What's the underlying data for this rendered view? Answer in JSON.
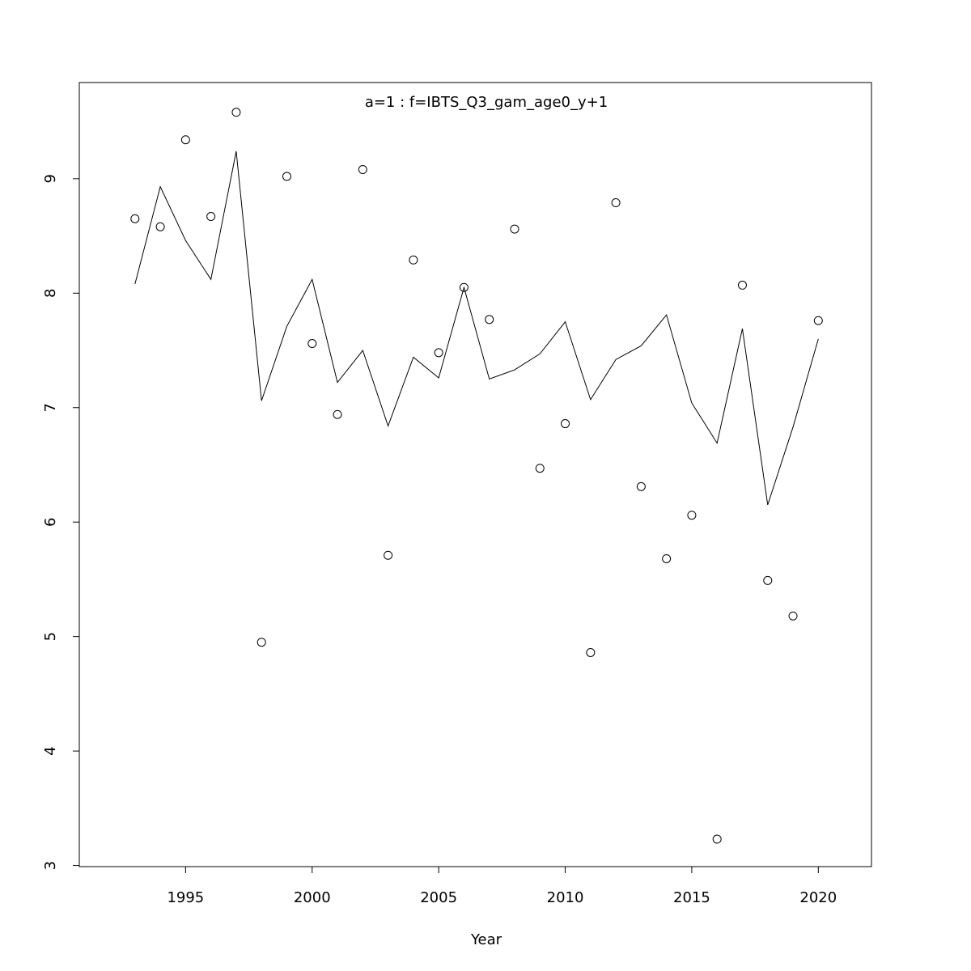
{
  "chart_data": {
    "type": "line",
    "title": "a=1  :  f=IBTS_Q3_gam_age0_y+1",
    "title_color": "#808080",
    "xlabel": "Year",
    "x": [
      1993,
      1994,
      1995,
      1996,
      1997,
      1998,
      1999,
      2000,
      2001,
      2002,
      2003,
      2004,
      2005,
      2006,
      2007,
      2008,
      2009,
      2010,
      2011,
      2012,
      2013,
      2014,
      2015,
      2016,
      2017,
      2018,
      2019,
      2020
    ],
    "series": [
      {
        "color": "#000000",
        "marker": "circle",
        "values": [
          8.65,
          8.58,
          9.34,
          8.67,
          9.58,
          4.95,
          9.02,
          7.56,
          6.94,
          9.08,
          5.71,
          8.29,
          7.48,
          8.05,
          7.77,
          8.56,
          6.47,
          6.86,
          4.86,
          8.79,
          6.31,
          5.68,
          6.06,
          3.23,
          8.07,
          5.49,
          5.18,
          7.76
        ]
      },
      {
        "color": "#000000",
        "marker": "line",
        "values": [
          8.08,
          8.93,
          8.46,
          8.12,
          9.24,
          7.06,
          7.71,
          8.12,
          7.22,
          7.5,
          6.84,
          7.44,
          7.26,
          8.05,
          7.25,
          7.33,
          7.47,
          7.75,
          7.07,
          7.42,
          7.54,
          7.81,
          7.04,
          6.69,
          7.69,
          6.15,
          6.83,
          7.6
        ]
      }
    ],
    "xlim": [
      1990.8,
      2022.1
    ],
    "xticks": [
      1995,
      2000,
      2005,
      2010,
      2015,
      2020
    ],
    "ylim": [
      2.99,
      9.84
    ],
    "yticks": [
      3,
      4,
      5,
      6,
      7,
      8,
      9
    ]
  }
}
